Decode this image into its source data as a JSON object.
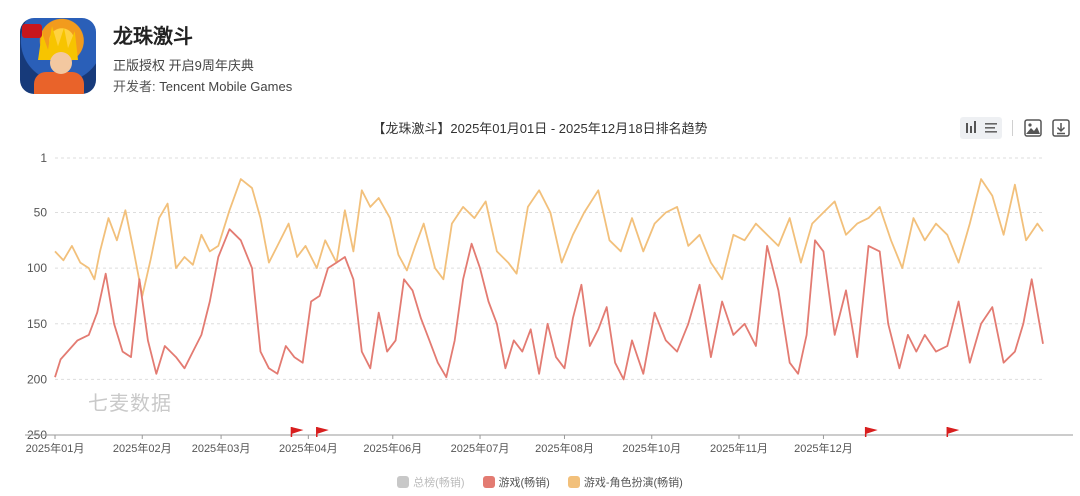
{
  "app": {
    "title": "龙珠激斗",
    "subtitle": "正版授权 开启9周年庆典",
    "developer_label": "开发者:",
    "developer": "Tencent Mobile Games"
  },
  "watermark": "七麦数据",
  "toolbar": {
    "icons": [
      "bar-chart-icon",
      "list-icon",
      "image-icon",
      "download-icon"
    ]
  },
  "colors": {
    "total": "#c8c8c8",
    "games": "#e37b72",
    "rpg": "#f2c07b",
    "axis": "#999999",
    "grid": "#dddddd",
    "flag": "#d81e1e"
  },
  "chart_data": {
    "type": "line",
    "title": "【龙珠激斗】2025年01月01日 - 2025年12月18日排名趋势",
    "y_reversed": true,
    "ylim": [
      1,
      250
    ],
    "yticks": [
      "1",
      "50",
      "100",
      "150",
      "200",
      "250"
    ],
    "x_range": [
      0,
      351
    ],
    "x_ticks": [
      {
        "day": 0,
        "label": "2025年01月"
      },
      {
        "day": 31,
        "label": "2025年02月"
      },
      {
        "day": 59,
        "label": "2025年03月"
      },
      {
        "day": 90,
        "label": "2025年04月"
      },
      {
        "day": 120,
        "label": "2025年06月"
      },
      {
        "day": 151,
        "label": "2025年07月"
      },
      {
        "day": 181,
        "label": "2025年08月"
      },
      {
        "day": 212,
        "label": "2025年10月"
      },
      {
        "day": 243,
        "label": "2025年11月"
      },
      {
        "day": 273,
        "label": "2025年12月"
      }
    ],
    "event_flags_day": [
      84,
      93,
      288,
      317
    ],
    "legend": [
      {
        "name": "总榜(畅销)",
        "key": "total",
        "hidden": true
      },
      {
        "name": "游戏(畅销)",
        "key": "games"
      },
      {
        "name": "游戏-角色扮演(畅销)",
        "key": "rpg"
      }
    ],
    "series": [
      {
        "name": "游戏-角色扮演(畅销)",
        "key": "rpg",
        "points": [
          [
            0,
            85
          ],
          [
            3,
            93
          ],
          [
            6,
            80
          ],
          [
            9,
            95
          ],
          [
            12,
            100
          ],
          [
            14,
            110
          ],
          [
            16,
            85
          ],
          [
            19,
            55
          ],
          [
            22,
            75
          ],
          [
            25,
            48
          ],
          [
            28,
            85
          ],
          [
            31,
            125
          ],
          [
            34,
            92
          ],
          [
            37,
            55
          ],
          [
            40,
            42
          ],
          [
            43,
            100
          ],
          [
            46,
            90
          ],
          [
            49,
            97
          ],
          [
            52,
            70
          ],
          [
            55,
            85
          ],
          [
            58,
            80
          ],
          [
            62,
            48
          ],
          [
            66,
            20
          ],
          [
            70,
            28
          ],
          [
            73,
            55
          ],
          [
            76,
            95
          ],
          [
            79,
            80
          ],
          [
            83,
            60
          ],
          [
            86,
            90
          ],
          [
            89,
            80
          ],
          [
            93,
            100
          ],
          [
            96,
            75
          ],
          [
            100,
            95
          ],
          [
            103,
            48
          ],
          [
            106,
            85
          ],
          [
            109,
            30
          ],
          [
            112,
            45
          ],
          [
            115,
            37
          ],
          [
            119,
            55
          ],
          [
            122,
            88
          ],
          [
            125,
            102
          ],
          [
            128,
            80
          ],
          [
            131,
            60
          ],
          [
            135,
            100
          ],
          [
            138,
            110
          ],
          [
            141,
            60
          ],
          [
            145,
            45
          ],
          [
            149,
            55
          ],
          [
            153,
            40
          ],
          [
            157,
            85
          ],
          [
            161,
            95
          ],
          [
            164,
            105
          ],
          [
            168,
            45
          ],
          [
            172,
            30
          ],
          [
            176,
            50
          ],
          [
            180,
            95
          ],
          [
            184,
            70
          ],
          [
            188,
            50
          ],
          [
            193,
            30
          ],
          [
            197,
            75
          ],
          [
            201,
            85
          ],
          [
            205,
            55
          ],
          [
            209,
            85
          ],
          [
            213,
            60
          ],
          [
            217,
            50
          ],
          [
            221,
            45
          ],
          [
            225,
            80
          ],
          [
            229,
            70
          ],
          [
            233,
            95
          ],
          [
            237,
            110
          ],
          [
            241,
            70
          ],
          [
            245,
            75
          ],
          [
            249,
            60
          ],
          [
            253,
            70
          ],
          [
            257,
            80
          ],
          [
            261,
            55
          ],
          [
            265,
            95
          ],
          [
            269,
            60
          ],
          [
            273,
            50
          ],
          [
            277,
            40
          ],
          [
            281,
            70
          ],
          [
            285,
            60
          ],
          [
            289,
            55
          ],
          [
            293,
            45
          ],
          [
            297,
            75
          ],
          [
            301,
            100
          ],
          [
            305,
            55
          ],
          [
            309,
            75
          ],
          [
            313,
            60
          ],
          [
            317,
            70
          ],
          [
            321,
            95
          ],
          [
            325,
            60
          ],
          [
            329,
            20
          ],
          [
            333,
            35
          ],
          [
            337,
            70
          ],
          [
            341,
            25
          ],
          [
            345,
            75
          ],
          [
            349,
            60
          ],
          [
            351,
            67
          ]
        ]
      },
      {
        "name": "游戏(畅销)",
        "key": "games",
        "points": [
          [
            0,
            198
          ],
          [
            2,
            182
          ],
          [
            8,
            165
          ],
          [
            12,
            160
          ],
          [
            15,
            140
          ],
          [
            18,
            105
          ],
          [
            21,
            150
          ],
          [
            24,
            175
          ],
          [
            27,
            180
          ],
          [
            30,
            110
          ],
          [
            33,
            165
          ],
          [
            36,
            195
          ],
          [
            39,
            170
          ],
          [
            43,
            180
          ],
          [
            46,
            190
          ],
          [
            49,
            175
          ],
          [
            52,
            160
          ],
          [
            55,
            130
          ],
          [
            58,
            90
          ],
          [
            62,
            65
          ],
          [
            66,
            75
          ],
          [
            70,
            100
          ],
          [
            73,
            175
          ],
          [
            76,
            190
          ],
          [
            79,
            195
          ],
          [
            82,
            170
          ],
          [
            85,
            180
          ],
          [
            88,
            185
          ],
          [
            91,
            130
          ],
          [
            94,
            125
          ],
          [
            97,
            100
          ],
          [
            100,
            95
          ],
          [
            103,
            90
          ],
          [
            106,
            110
          ],
          [
            109,
            175
          ],
          [
            112,
            190
          ],
          [
            115,
            140
          ],
          [
            118,
            175
          ],
          [
            121,
            165
          ],
          [
            124,
            110
          ],
          [
            127,
            120
          ],
          [
            130,
            145
          ],
          [
            133,
            165
          ],
          [
            136,
            185
          ],
          [
            139,
            198
          ],
          [
            142,
            165
          ],
          [
            145,
            110
          ],
          [
            148,
            78
          ],
          [
            151,
            100
          ],
          [
            154,
            130
          ],
          [
            157,
            150
          ],
          [
            160,
            190
          ],
          [
            163,
            165
          ],
          [
            166,
            175
          ],
          [
            169,
            155
          ],
          [
            172,
            195
          ],
          [
            175,
            150
          ],
          [
            178,
            180
          ],
          [
            181,
            190
          ],
          [
            184,
            145
          ],
          [
            187,
            115
          ],
          [
            190,
            170
          ],
          [
            193,
            155
          ],
          [
            196,
            135
          ],
          [
            199,
            185
          ],
          [
            202,
            200
          ],
          [
            205,
            165
          ],
          [
            209,
            195
          ],
          [
            213,
            140
          ],
          [
            217,
            165
          ],
          [
            221,
            175
          ],
          [
            225,
            150
          ],
          [
            229,
            115
          ],
          [
            233,
            180
          ],
          [
            237,
            130
          ],
          [
            241,
            160
          ],
          [
            245,
            150
          ],
          [
            249,
            170
          ],
          [
            253,
            80
          ],
          [
            257,
            120
          ],
          [
            261,
            185
          ],
          [
            264,
            195
          ],
          [
            267,
            160
          ],
          [
            270,
            75
          ],
          [
            273,
            85
          ],
          [
            277,
            160
          ],
          [
            281,
            120
          ],
          [
            285,
            180
          ],
          [
            289,
            80
          ],
          [
            293,
            85
          ],
          [
            296,
            150
          ],
          [
            300,
            190
          ],
          [
            303,
            160
          ],
          [
            306,
            175
          ],
          [
            309,
            160
          ],
          [
            313,
            175
          ],
          [
            317,
            170
          ],
          [
            321,
            130
          ],
          [
            325,
            185
          ],
          [
            329,
            150
          ],
          [
            333,
            135
          ],
          [
            337,
            185
          ],
          [
            341,
            175
          ],
          [
            344,
            150
          ],
          [
            347,
            110
          ],
          [
            351,
            168
          ]
        ]
      }
    ]
  }
}
